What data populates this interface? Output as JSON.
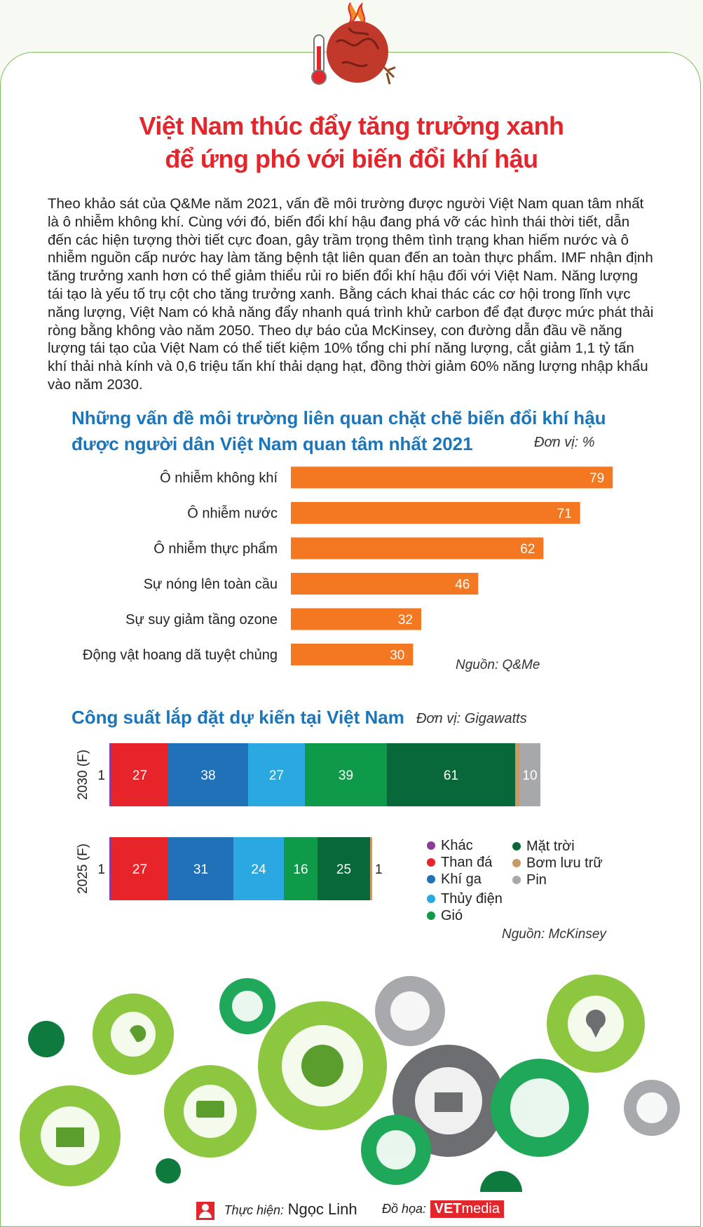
{
  "title": {
    "line1": "Việt Nam thúc đẩy tăng trưởng xanh",
    "line2": "để ứng phó với biến đổi khí hậu"
  },
  "intro": "Theo khảo sát của Q&Me năm 2021, vấn đề môi trường được người Việt Nam quan tâm nhất là ô nhiễm không khí. Cùng với đó, biến đổi khí hậu đang phá vỡ các hình thái thời tiết, dẫn đến các hiện tượng thời tiết cực đoan, gây trầm trọng thêm tình trạng khan hiếm nước và ô nhiễm nguồn cấp nước hay làm tăng bệnh tật liên quan đến an toàn thực phẩm. IMF nhận định tăng trưởng xanh hơn có thể giảm thiểu rủi ro biến đổi khí hậu đối với Việt Nam. Năng lượng tái tạo là yếu tố trụ cột cho tăng trưởng xanh. Bằng cách khai thác các cơ hội trong lĩnh vực năng lượng, Việt Nam có khả năng đẩy nhanh quá trình khử carbon để đạt được mức phát thải ròng bằng không vào năm 2050. Theo dự báo của McKinsey, con đường dẫn đầu về năng lượng tái tạo của Việt Nam có thể tiết kiệm 10% tổng chi phí năng lượng, cắt giảm 1,1 tỷ tấn khí thải nhà kính và 0,6 triệu tấn khí thải dạng hạt, đồng thời giảm 60% năng lượng nhập khẩu vào năm 2030.",
  "chart_data": [
    {
      "type": "bar",
      "orientation": "horizontal",
      "title": "Những vấn đề môi trường liên quan chặt chẽ biến đổi khí hậu được người dân Việt Nam quan tâm nhất 2021",
      "title_line1": "Những vấn đề môi trường liên quan chặt chẽ biến đổi khí hậu",
      "title_line2": "được người dân Việt Nam quan tâm nhất 2021",
      "unit": "Đơn vị: %",
      "source": "Nguồn: Q&Me",
      "categories": [
        "Ô nhiễm không khí",
        "Ô nhiễm nước",
        "Ô nhiễm thực phẩm",
        "Sự nóng lên toàn cầu",
        "Sự suy giảm tầng ozone",
        "Động vật hoang dã tuyệt chủng"
      ],
      "values": [
        79,
        71,
        62,
        46,
        32,
        30
      ],
      "xlim": [
        0,
        80
      ],
      "color": "#f47721"
    },
    {
      "type": "bar",
      "orientation": "horizontal",
      "stacked": true,
      "title": "Công suất lắp đặt dự kiến tại Việt Nam",
      "unit": "Đơn vị: Gigawatts",
      "source": "Nguồn: McKinsey",
      "categories": [
        "2030 (F)",
        "2025 (F)"
      ],
      "series": [
        {
          "name": "Khác",
          "color": "#8e3b9a",
          "values": [
            1,
            1
          ]
        },
        {
          "name": "Than đá",
          "color": "#e8242b",
          "values": [
            27,
            27
          ]
        },
        {
          "name": "Khí ga",
          "color": "#2171b9",
          "values": [
            38,
            31
          ]
        },
        {
          "name": "Thủy điện",
          "color": "#2aa9e0",
          "values": [
            27,
            24
          ]
        },
        {
          "name": "Gió",
          "color": "#0e9a48",
          "values": [
            39,
            16
          ]
        },
        {
          "name": "Mặt trời",
          "color": "#09683a",
          "values": [
            61,
            25
          ]
        },
        {
          "name": "Bơm lưu trữ",
          "color": "#c89a6a",
          "values": [
            2,
            1
          ]
        },
        {
          "name": "Pin",
          "color": "#a6a8ab",
          "values": [
            10,
            0
          ]
        }
      ]
    }
  ],
  "footer": {
    "label1": "Thực hiện:",
    "author": "Ngọc Linh",
    "label2": "Đồ họa:",
    "brand_bold": "VET",
    "brand_rest": "media"
  }
}
